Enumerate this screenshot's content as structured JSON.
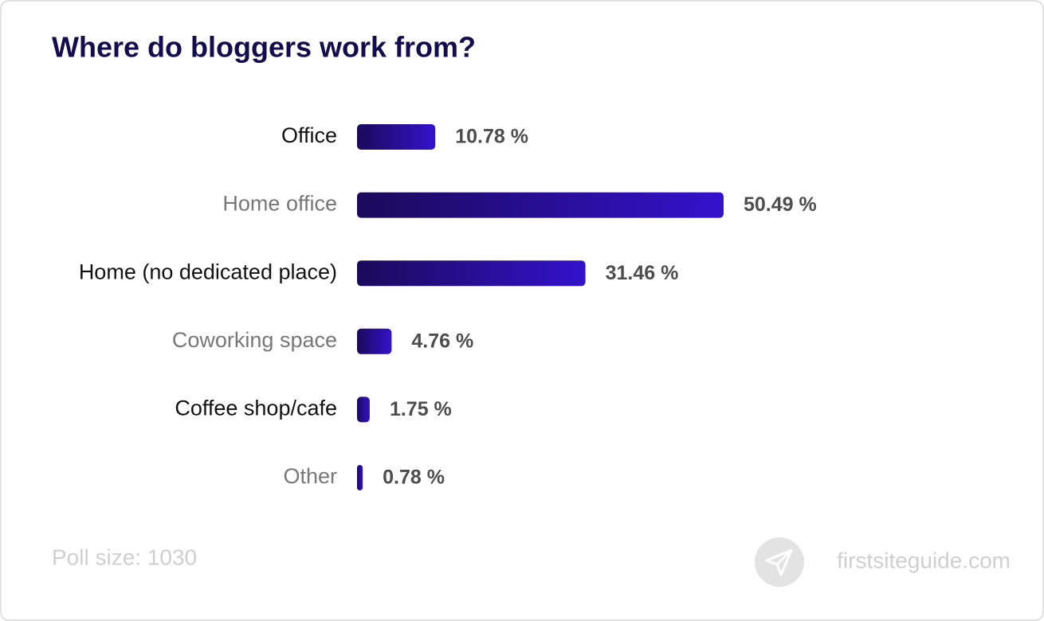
{
  "chart_data": {
    "type": "bar",
    "title": "Where do bloggers work from?",
    "categories": [
      "Office",
      "Home office",
      "Home (no dedicated place)",
      "Coworking space",
      "Coffee shop/cafe",
      "Other"
    ],
    "values": [
      10.78,
      50.49,
      31.46,
      4.76,
      1.75,
      0.78
    ],
    "value_labels": [
      "10.78 %",
      "50.49 %",
      "31.46 %",
      "4.76 %",
      "1.75 %",
      "0.78 %"
    ],
    "color": "#3312cc",
    "caption": "Poll size: 1030",
    "source": "firstsiteguide.com"
  }
}
